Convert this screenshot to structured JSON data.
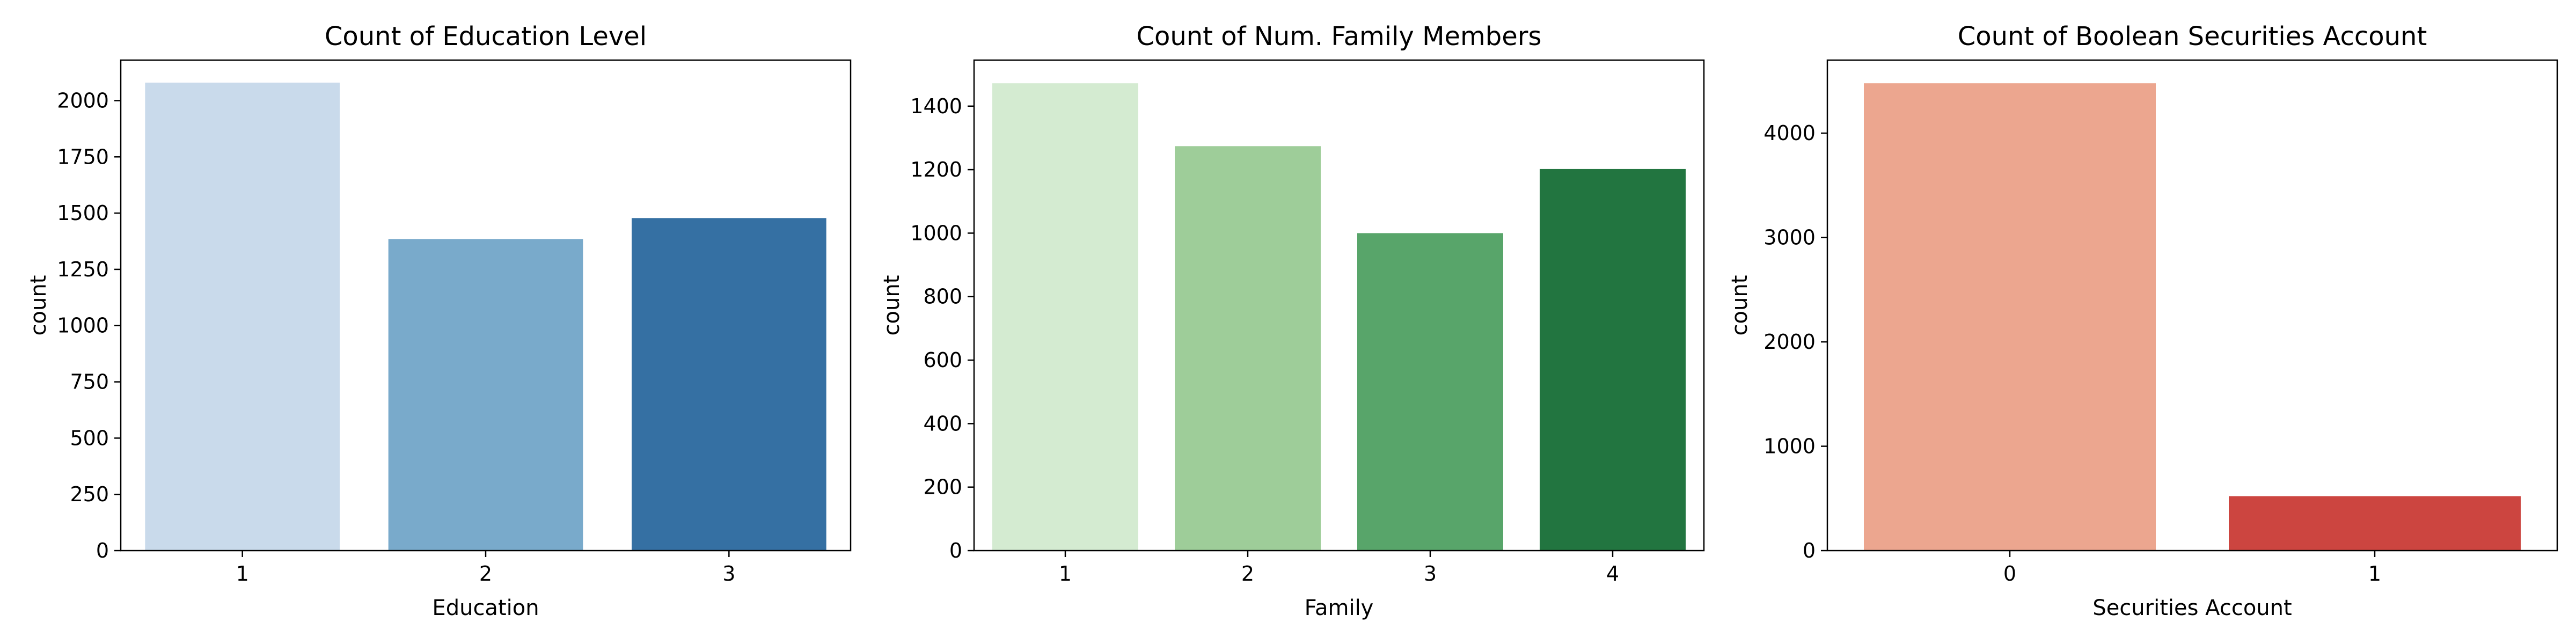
{
  "chart_data": [
    {
      "type": "bar",
      "title": "Count of Education Level",
      "xlabel": "Education",
      "ylabel": "count",
      "categories": [
        "1",
        "2",
        "3"
      ],
      "values": [
        2080,
        1385,
        1478
      ],
      "ylim": [
        0,
        2180
      ],
      "yticks": [
        0,
        250,
        500,
        750,
        1000,
        1250,
        1500,
        1750,
        2000
      ],
      "colors": [
        "#c9daeb",
        "#79aacb",
        "#3570a3"
      ],
      "grid": false,
      "legend": "none"
    },
    {
      "type": "bar",
      "title": "Count of Num. Family Members",
      "xlabel": "Family",
      "ylabel": "count",
      "categories": [
        "1",
        "2",
        "3",
        "4"
      ],
      "values": [
        1472,
        1274,
        1000,
        1202
      ],
      "ylim": [
        0,
        1545
      ],
      "yticks": [
        0,
        200,
        400,
        600,
        800,
        1000,
        1200,
        1400
      ],
      "colors": [
        "#d4ebd1",
        "#9ecd99",
        "#58a56a",
        "#227540"
      ],
      "grid": false,
      "legend": "none"
    },
    {
      "type": "bar",
      "title": "Count of Boolean Securities Account",
      "xlabel": "Securities Account",
      "ylabel": "count",
      "categories": [
        "0",
        "1"
      ],
      "values": [
        4478,
        522
      ],
      "ylim": [
        0,
        4700
      ],
      "yticks": [
        0,
        1000,
        2000,
        3000,
        4000
      ],
      "colors": [
        "#eca68f",
        "#cc4540"
      ],
      "grid": false,
      "legend": "none"
    }
  ]
}
